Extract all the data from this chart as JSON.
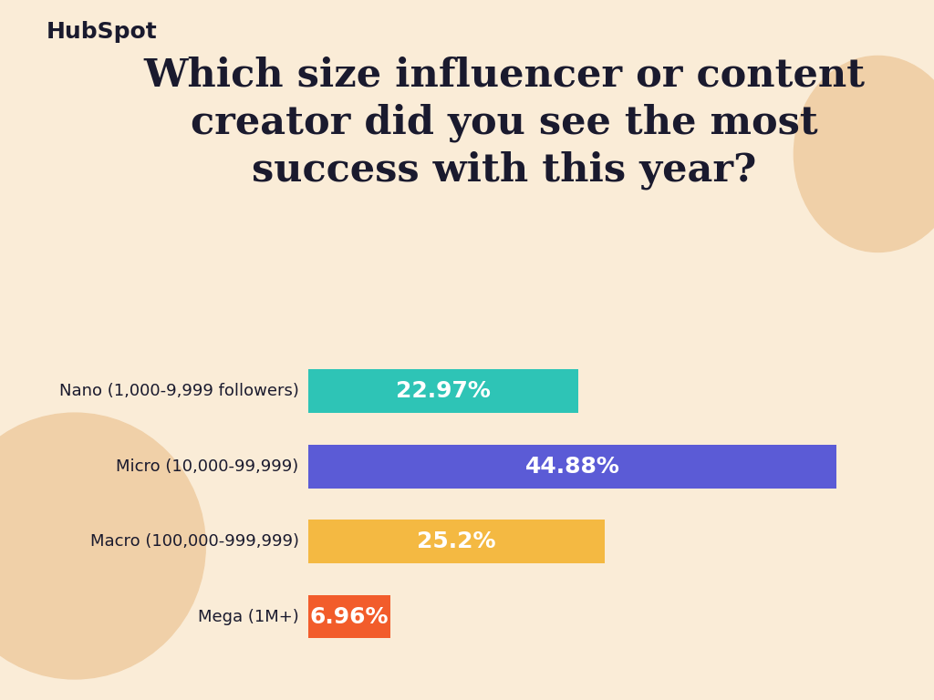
{
  "title": "Which size influencer or content\ncreator did you see the most\nsuccess with this year?",
  "categories": [
    "Nano (1,000-9,999 followers)",
    "Micro (10,000-99,999)",
    "Macro (100,000-999,999)",
    "Mega (1M+)"
  ],
  "values": [
    22.97,
    44.88,
    25.2,
    6.96
  ],
  "labels": [
    "22.97%",
    "44.88%",
    "25.2%",
    "6.96%"
  ],
  "bar_colors": [
    "#2ec4b6",
    "#5b5bd6",
    "#f4b942",
    "#f25c2b"
  ],
  "background_color": "#faecd7",
  "blob_color": "#f0d0a8",
  "text_color": "#1a1a2e",
  "label_color": "#ffffff",
  "title_fontsize": 31,
  "label_fontsize": 18,
  "category_fontsize": 13,
  "hubspot_text": "HubSpot",
  "hubspot_fontsize": 18,
  "max_value": 50,
  "bar_height": 0.58
}
